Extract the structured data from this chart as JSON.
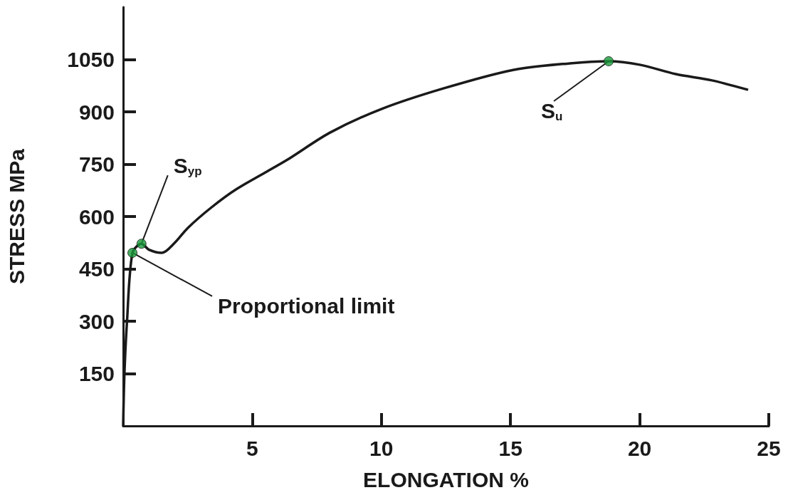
{
  "chart_data": {
    "type": "line",
    "xlabel": "ELONGATION %",
    "ylabel": "STRESS MPa",
    "xlim": [
      0,
      25
    ],
    "ylim": [
      0,
      1200
    ],
    "xticks": [
      5,
      10,
      15,
      20,
      25
    ],
    "yticks": [
      150,
      300,
      450,
      600,
      750,
      900,
      1050
    ],
    "grid": false,
    "series": [
      {
        "color": "#1a1a1a",
        "marker": "none",
        "x": [
          0,
          0.05,
          0.15,
          0.36,
          0.71,
          1.0,
          1.5,
          2.0,
          2.5,
          3.4,
          4.4,
          6.3,
          8.0,
          10,
          12.4,
          15.1,
          17.3,
          18.8,
          20.0,
          21.4,
          22.8,
          24.2
        ],
        "values": [
          0,
          150,
          300,
          496,
          522,
          505,
          496,
          525,
          567,
          625,
          679,
          760,
          840,
          908,
          967,
          1020,
          1039,
          1045,
          1035,
          1008,
          990,
          963
        ]
      },
      {
        "type": "scatter",
        "color": "#1a9a3a",
        "marker": "circle",
        "x": [
          0.36,
          0.71,
          18.8
        ],
        "values": [
          496,
          522,
          1045
        ]
      }
    ],
    "annotations": [
      {
        "text": "S$_{yp}$",
        "x": 0.71,
        "y": 522
      },
      {
        "text": "S$_{u}$",
        "x": 18.8,
        "y": 1045
      },
      {
        "text": "Proportional limit",
        "x": 0.36,
        "y": 496
      }
    ]
  }
}
